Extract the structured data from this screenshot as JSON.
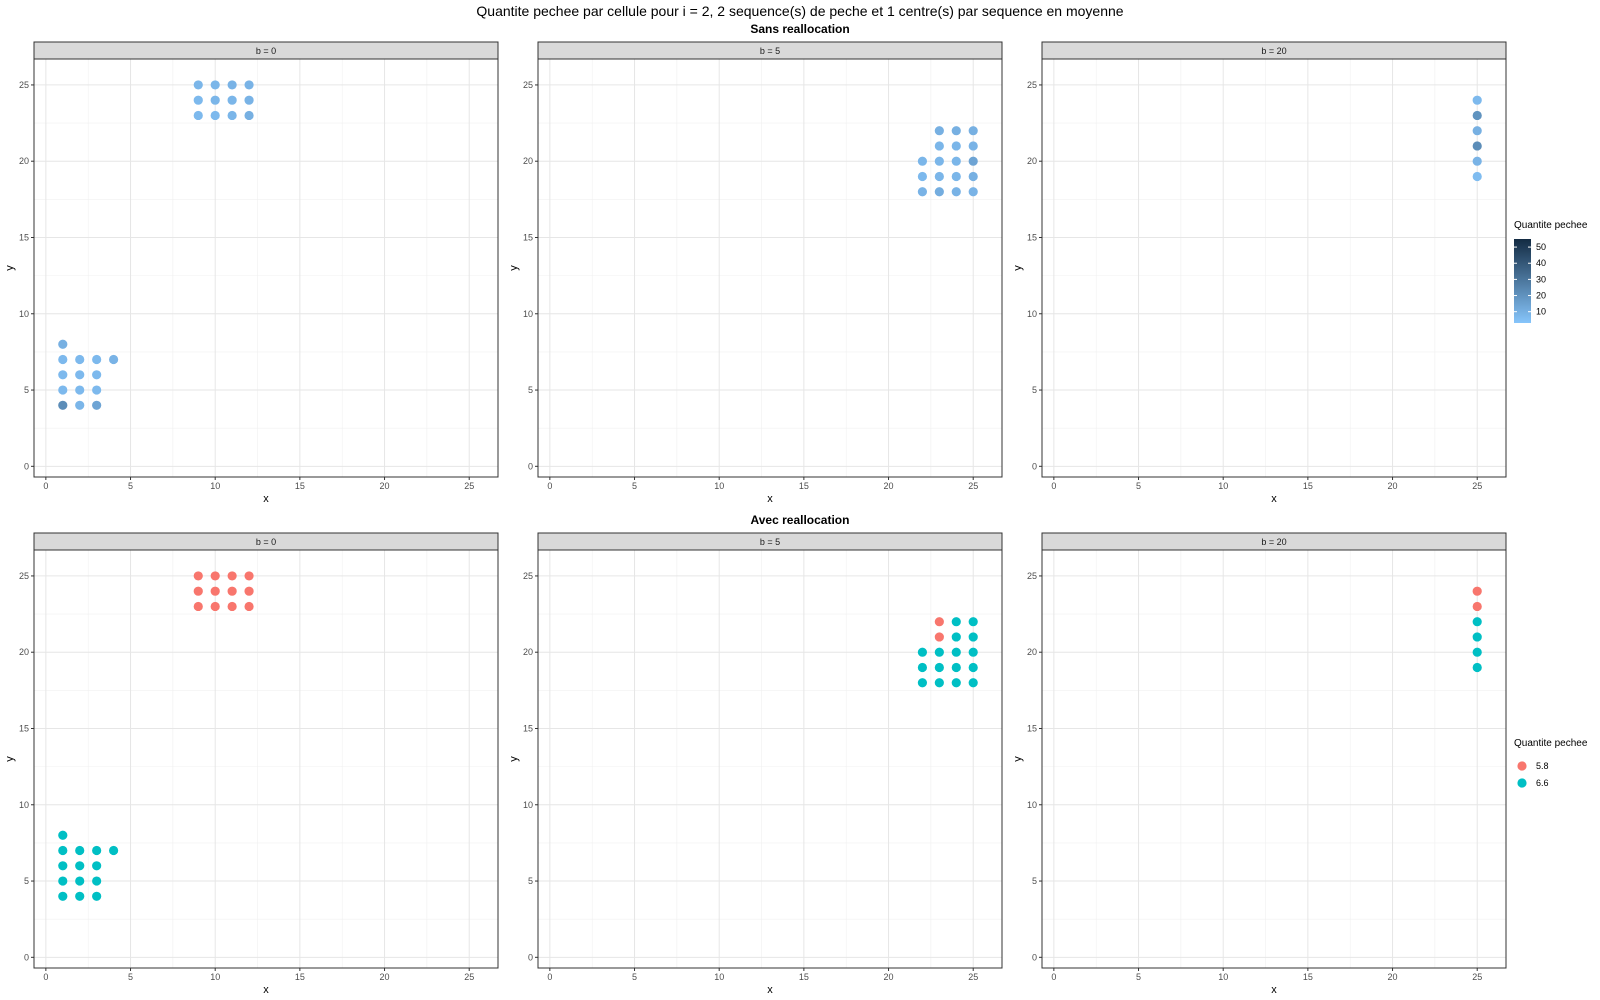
{
  "title": "Quantite pechee par cellule pour i = 2, 2 sequence(s) de peche et 1 centre(s) par sequence en moyenne",
  "chart_data": {
    "type": "scatter",
    "xlabel": "x",
    "ylabel": "y",
    "xlim": [
      -0.7,
      26.7
    ],
    "ylim": [
      -0.7,
      26.7
    ],
    "x_ticks": [
      0,
      5,
      10,
      15,
      20,
      25
    ],
    "y_ticks": [
      0,
      5,
      10,
      15,
      20,
      25
    ],
    "grid": true,
    "rows": [
      {
        "title": "Sans reallocation",
        "legend": {
          "title": "Quantite pechee",
          "type": "continuous",
          "position": "right",
          "ticks": [
            10,
            20,
            30,
            40,
            50
          ],
          "range": [
            3,
            55
          ],
          "low_color": "#86c5fb",
          "high_color": "#132b43"
        },
        "panels": [
          {
            "strip": "b = 0",
            "points": [
              {
                "x": 9,
                "y": 25,
                "v": 8
              },
              {
                "x": 10,
                "y": 25,
                "v": 8
              },
              {
                "x": 11,
                "y": 25,
                "v": 9
              },
              {
                "x": 12,
                "y": 25,
                "v": 9
              },
              {
                "x": 9,
                "y": 24,
                "v": 7
              },
              {
                "x": 10,
                "y": 24,
                "v": 8
              },
              {
                "x": 11,
                "y": 24,
                "v": 8
              },
              {
                "x": 12,
                "y": 24,
                "v": 9
              },
              {
                "x": 9,
                "y": 23,
                "v": 7
              },
              {
                "x": 10,
                "y": 23,
                "v": 7
              },
              {
                "x": 11,
                "y": 23,
                "v": 8
              },
              {
                "x": 12,
                "y": 23,
                "v": 10
              },
              {
                "x": 1,
                "y": 8,
                "v": 10
              },
              {
                "x": 1,
                "y": 7,
                "v": 7
              },
              {
                "x": 2,
                "y": 7,
                "v": 7
              },
              {
                "x": 3,
                "y": 7,
                "v": 7
              },
              {
                "x": 4,
                "y": 7,
                "v": 9
              },
              {
                "x": 1,
                "y": 6,
                "v": 7
              },
              {
                "x": 2,
                "y": 6,
                "v": 7
              },
              {
                "x": 3,
                "y": 6,
                "v": 7
              },
              {
                "x": 1,
                "y": 5,
                "v": 7
              },
              {
                "x": 2,
                "y": 5,
                "v": 7
              },
              {
                "x": 3,
                "y": 5,
                "v": 7
              },
              {
                "x": 1,
                "y": 4,
                "v": 22
              },
              {
                "x": 2,
                "y": 4,
                "v": 8
              },
              {
                "x": 3,
                "y": 4,
                "v": 14
              }
            ]
          },
          {
            "strip": "b = 5",
            "points": [
              {
                "x": 23,
                "y": 22,
                "v": 10
              },
              {
                "x": 24,
                "y": 22,
                "v": 10
              },
              {
                "x": 25,
                "y": 22,
                "v": 10
              },
              {
                "x": 23,
                "y": 21,
                "v": 8
              },
              {
                "x": 24,
                "y": 21,
                "v": 8
              },
              {
                "x": 25,
                "y": 21,
                "v": 9
              },
              {
                "x": 22,
                "y": 20,
                "v": 8
              },
              {
                "x": 23,
                "y": 20,
                "v": 8
              },
              {
                "x": 24,
                "y": 20,
                "v": 8
              },
              {
                "x": 25,
                "y": 20,
                "v": 14
              },
              {
                "x": 22,
                "y": 19,
                "v": 7
              },
              {
                "x": 23,
                "y": 19,
                "v": 8
              },
              {
                "x": 24,
                "y": 19,
                "v": 8
              },
              {
                "x": 25,
                "y": 19,
                "v": 10
              },
              {
                "x": 22,
                "y": 18,
                "v": 9
              },
              {
                "x": 23,
                "y": 18,
                "v": 11
              },
              {
                "x": 24,
                "y": 18,
                "v": 9
              },
              {
                "x": 25,
                "y": 18,
                "v": 9
              }
            ]
          },
          {
            "strip": "b = 20",
            "points": [
              {
                "x": 25,
                "y": 24,
                "v": 7
              },
              {
                "x": 25,
                "y": 23,
                "v": 20
              },
              {
                "x": 25,
                "y": 22,
                "v": 10
              },
              {
                "x": 25,
                "y": 21,
                "v": 22
              },
              {
                "x": 25,
                "y": 20,
                "v": 9
              },
              {
                "x": 25,
                "y": 19,
                "v": 6
              }
            ]
          }
        ]
      },
      {
        "title": "Avec reallocation",
        "legend": {
          "title": "Quantite pechee",
          "type": "discrete",
          "position": "right",
          "items": [
            {
              "label": "5.8",
              "color": "#f8766d"
            },
            {
              "label": "6.6",
              "color": "#00bfc4"
            }
          ]
        },
        "panels": [
          {
            "strip": "b = 0",
            "points": [
              {
                "x": 9,
                "y": 25,
                "v": "5.8"
              },
              {
                "x": 10,
                "y": 25,
                "v": "5.8"
              },
              {
                "x": 11,
                "y": 25,
                "v": "5.8"
              },
              {
                "x": 12,
                "y": 25,
                "v": "5.8"
              },
              {
                "x": 9,
                "y": 24,
                "v": "5.8"
              },
              {
                "x": 10,
                "y": 24,
                "v": "5.8"
              },
              {
                "x": 11,
                "y": 24,
                "v": "5.8"
              },
              {
                "x": 12,
                "y": 24,
                "v": "5.8"
              },
              {
                "x": 9,
                "y": 23,
                "v": "5.8"
              },
              {
                "x": 10,
                "y": 23,
                "v": "5.8"
              },
              {
                "x": 11,
                "y": 23,
                "v": "5.8"
              },
              {
                "x": 12,
                "y": 23,
                "v": "5.8"
              },
              {
                "x": 1,
                "y": 8,
                "v": "6.6"
              },
              {
                "x": 1,
                "y": 7,
                "v": "6.6"
              },
              {
                "x": 2,
                "y": 7,
                "v": "6.6"
              },
              {
                "x": 3,
                "y": 7,
                "v": "6.6"
              },
              {
                "x": 4,
                "y": 7,
                "v": "6.6"
              },
              {
                "x": 1,
                "y": 6,
                "v": "6.6"
              },
              {
                "x": 2,
                "y": 6,
                "v": "6.6"
              },
              {
                "x": 3,
                "y": 6,
                "v": "6.6"
              },
              {
                "x": 1,
                "y": 5,
                "v": "6.6"
              },
              {
                "x": 2,
                "y": 5,
                "v": "6.6"
              },
              {
                "x": 3,
                "y": 5,
                "v": "6.6"
              },
              {
                "x": 1,
                "y": 4,
                "v": "6.6"
              },
              {
                "x": 2,
                "y": 4,
                "v": "6.6"
              },
              {
                "x": 3,
                "y": 4,
                "v": "6.6"
              }
            ]
          },
          {
            "strip": "b = 5",
            "points": [
              {
                "x": 23,
                "y": 22,
                "v": "5.8"
              },
              {
                "x": 24,
                "y": 22,
                "v": "6.6"
              },
              {
                "x": 25,
                "y": 22,
                "v": "6.6"
              },
              {
                "x": 23,
                "y": 21,
                "v": "5.8"
              },
              {
                "x": 24,
                "y": 21,
                "v": "6.6"
              },
              {
                "x": 25,
                "y": 21,
                "v": "6.6"
              },
              {
                "x": 22,
                "y": 20,
                "v": "6.6"
              },
              {
                "x": 23,
                "y": 20,
                "v": "6.6"
              },
              {
                "x": 24,
                "y": 20,
                "v": "6.6"
              },
              {
                "x": 25,
                "y": 20,
                "v": "6.6"
              },
              {
                "x": 22,
                "y": 19,
                "v": "6.6"
              },
              {
                "x": 23,
                "y": 19,
                "v": "6.6"
              },
              {
                "x": 24,
                "y": 19,
                "v": "6.6"
              },
              {
                "x": 25,
                "y": 19,
                "v": "6.6"
              },
              {
                "x": 22,
                "y": 18,
                "v": "6.6"
              },
              {
                "x": 23,
                "y": 18,
                "v": "6.6"
              },
              {
                "x": 24,
                "y": 18,
                "v": "6.6"
              },
              {
                "x": 25,
                "y": 18,
                "v": "6.6"
              }
            ]
          },
          {
            "strip": "b = 20",
            "points": [
              {
                "x": 25,
                "y": 24,
                "v": "5.8"
              },
              {
                "x": 25,
                "y": 23,
                "v": "5.8"
              },
              {
                "x": 25,
                "y": 22,
                "v": "6.6"
              },
              {
                "x": 25,
                "y": 21,
                "v": "6.6"
              },
              {
                "x": 25,
                "y": 20,
                "v": "6.6"
              },
              {
                "x": 25,
                "y": 19,
                "v": "6.6"
              }
            ]
          }
        ]
      }
    ]
  }
}
